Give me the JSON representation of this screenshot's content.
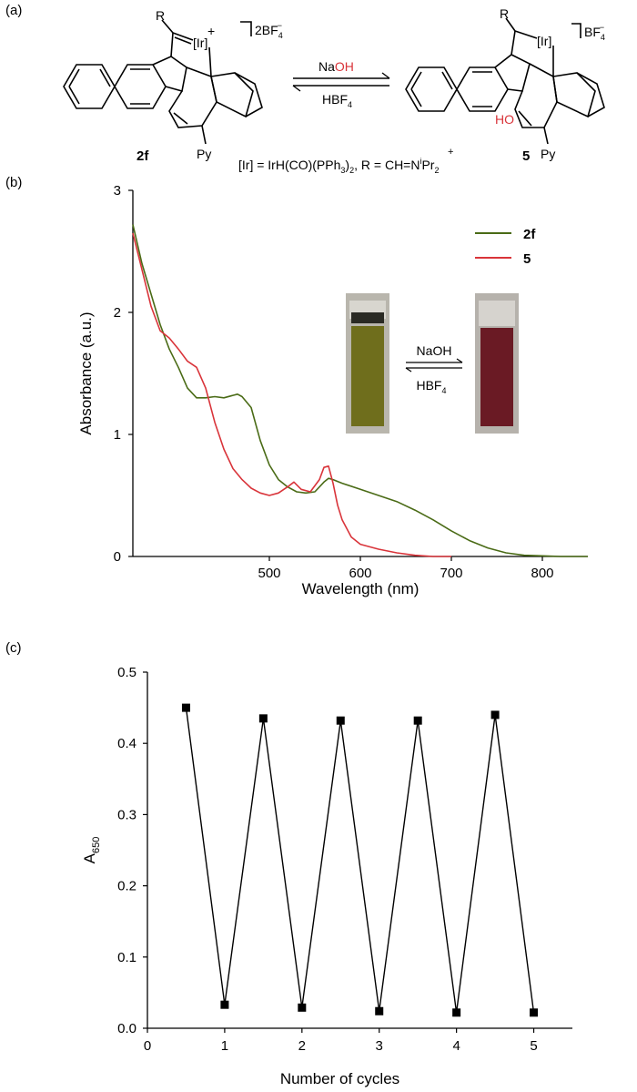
{
  "panels": {
    "a": {
      "label": "(a)",
      "left_charge": "2BF",
      "left_charge_sub": "4",
      "left_charge_sup": "−",
      "right_charge": "BF",
      "right_charge_sub": "4",
      "right_charge_sup": "−",
      "metal": "[Ir]",
      "plus": "+",
      "r_label": "R",
      "py": "Py",
      "ho": "HO",
      "compound_left": "2f",
      "compound_right": "5",
      "forward_reagent": "Na",
      "forward_reagent_colored": "OH",
      "reverse_reagent": "HBF",
      "reverse_reagent_sub": "4",
      "definition_1": "[Ir] = IrH(CO)(PPh",
      "definition_sub3": "3",
      "definition_2": ")",
      "definition_sub2a": "2",
      "definition_3": ", R = CH=N",
      "definition_sup_i": "i",
      "definition_4": "Pr",
      "definition_sub2b": "2",
      "definition_plus": "+"
    },
    "b": {
      "label": "(b)"
    },
    "c": {
      "label": "(c)"
    }
  },
  "inset": {
    "forward": "NaOH",
    "reverse": "HBF",
    "reverse_sub": "4",
    "colors": {
      "vial_2f": "#6f6e1c",
      "vial_5": "#6a1a24"
    }
  },
  "colors": {
    "series_2f": "#4a6b16",
    "series_5": "#d9343a",
    "red_text": "#d9343a",
    "markers": "#000000"
  },
  "chart_data": [
    {
      "panel": "b",
      "type": "line",
      "title": "",
      "xlabel": "Wavelength (nm)",
      "ylabel": "Absorbance (a.u.)",
      "xlim": [
        350,
        850
      ],
      "ylim": [
        0,
        3
      ],
      "xticks": [
        "500",
        "600",
        "700",
        "800"
      ],
      "yticks": [
        "0",
        "1",
        "2",
        "3"
      ],
      "legend_position": "top-right",
      "series": [
        {
          "name": "2f",
          "x": [
            350,
            360,
            370,
            380,
            390,
            400,
            410,
            420,
            430,
            440,
            450,
            460,
            465,
            470,
            480,
            490,
            500,
            510,
            520,
            530,
            540,
            550,
            560,
            565,
            570,
            580,
            600,
            620,
            640,
            660,
            680,
            700,
            720,
            740,
            760,
            780,
            800,
            820,
            850
          ],
          "y": [
            2.72,
            2.4,
            2.15,
            1.9,
            1.7,
            1.55,
            1.38,
            1.3,
            1.3,
            1.31,
            1.3,
            1.32,
            1.33,
            1.31,
            1.22,
            0.95,
            0.75,
            0.63,
            0.57,
            0.53,
            0.52,
            0.53,
            0.61,
            0.64,
            0.63,
            0.6,
            0.55,
            0.5,
            0.45,
            0.38,
            0.3,
            0.21,
            0.13,
            0.07,
            0.03,
            0.01,
            0.005,
            0.0,
            0.0
          ]
        },
        {
          "name": "5",
          "x": [
            350,
            360,
            370,
            380,
            390,
            400,
            410,
            420,
            430,
            440,
            450,
            460,
            470,
            480,
            490,
            500,
            510,
            520,
            527,
            535,
            545,
            555,
            560,
            565,
            570,
            575,
            580,
            590,
            600,
            620,
            640,
            660,
            680,
            700
          ],
          "y": [
            2.65,
            2.35,
            2.05,
            1.85,
            1.79,
            1.7,
            1.6,
            1.55,
            1.38,
            1.1,
            0.88,
            0.72,
            0.63,
            0.56,
            0.52,
            0.5,
            0.52,
            0.57,
            0.61,
            0.55,
            0.53,
            0.63,
            0.73,
            0.74,
            0.6,
            0.42,
            0.3,
            0.16,
            0.1,
            0.06,
            0.03,
            0.01,
            0.0,
            0.0
          ]
        }
      ]
    },
    {
      "panel": "c",
      "type": "line",
      "title": "",
      "xlabel": "Number of cycles",
      "ylabel": "A",
      "ylabel_sub": "650",
      "xlim": [
        0,
        5.5
      ],
      "ylim": [
        0,
        0.5
      ],
      "xticks": [
        "0",
        "1",
        "2",
        "3",
        "4",
        "5"
      ],
      "yticks": [
        "0.0",
        "0.1",
        "0.2",
        "0.3",
        "0.4",
        "0.5"
      ],
      "series": [
        {
          "name": "A650",
          "x": [
            0.5,
            1,
            1.5,
            2,
            2.5,
            3,
            3.5,
            4,
            4.5,
            5
          ],
          "y": [
            0.45,
            0.033,
            0.435,
            0.029,
            0.432,
            0.024,
            0.432,
            0.022,
            0.44,
            0.022
          ]
        }
      ]
    }
  ]
}
